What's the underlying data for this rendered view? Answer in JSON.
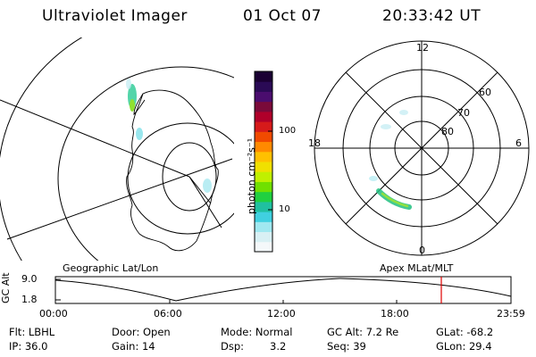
{
  "header": {
    "instrument": "Ultraviolet Imager",
    "date": "01 Oct 07",
    "time": "20:33:42 UT"
  },
  "colorbar": {
    "label": "photon cm⁻²s⁻¹",
    "ticks": [
      "100",
      "10"
    ],
    "colors": [
      "#1a0033",
      "#2a0a55",
      "#4a0d6e",
      "#7a0a3a",
      "#b0002a",
      "#d61a1a",
      "#f04a00",
      "#ff8a00",
      "#ffc000",
      "#f0e000",
      "#c0f000",
      "#70e000",
      "#20d040",
      "#20c0a0",
      "#40d0e0",
      "#a0e8f0",
      "#d8f0f4",
      "#f4f8fa"
    ]
  },
  "polar_plot": {
    "mlt_labels": {
      "top": "12",
      "bottom": "0",
      "left": "18",
      "right": "6"
    },
    "lat_labels": [
      "60",
      "70",
      "80"
    ]
  },
  "map_labels": {
    "left": "Geographic Lat/Lon",
    "right": "Apex MLat/MLT"
  },
  "altitude_plot": {
    "axis_label": "GC Alt",
    "y_ticks": [
      "9.0",
      "1.8"
    ],
    "x_ticks": [
      "00:00",
      "06:00",
      "12:00",
      "18:00",
      "23:59"
    ],
    "marker_color": "#e00000"
  },
  "status": {
    "row1": {
      "filter": "Flt: LBHL",
      "door": "Door: Open",
      "mode": "Mode: Normal",
      "gc_alt": "GC Alt: 7.2 Re",
      "glat": "GLat: -68.2"
    },
    "row2": {
      "ip": "IP: 36.0",
      "gain": "Gain: 14",
      "dsp_label": "Dsp:",
      "dsp_value": "3.2",
      "seq": "Seq: 39",
      "glon": "GLon: 29.4"
    }
  }
}
